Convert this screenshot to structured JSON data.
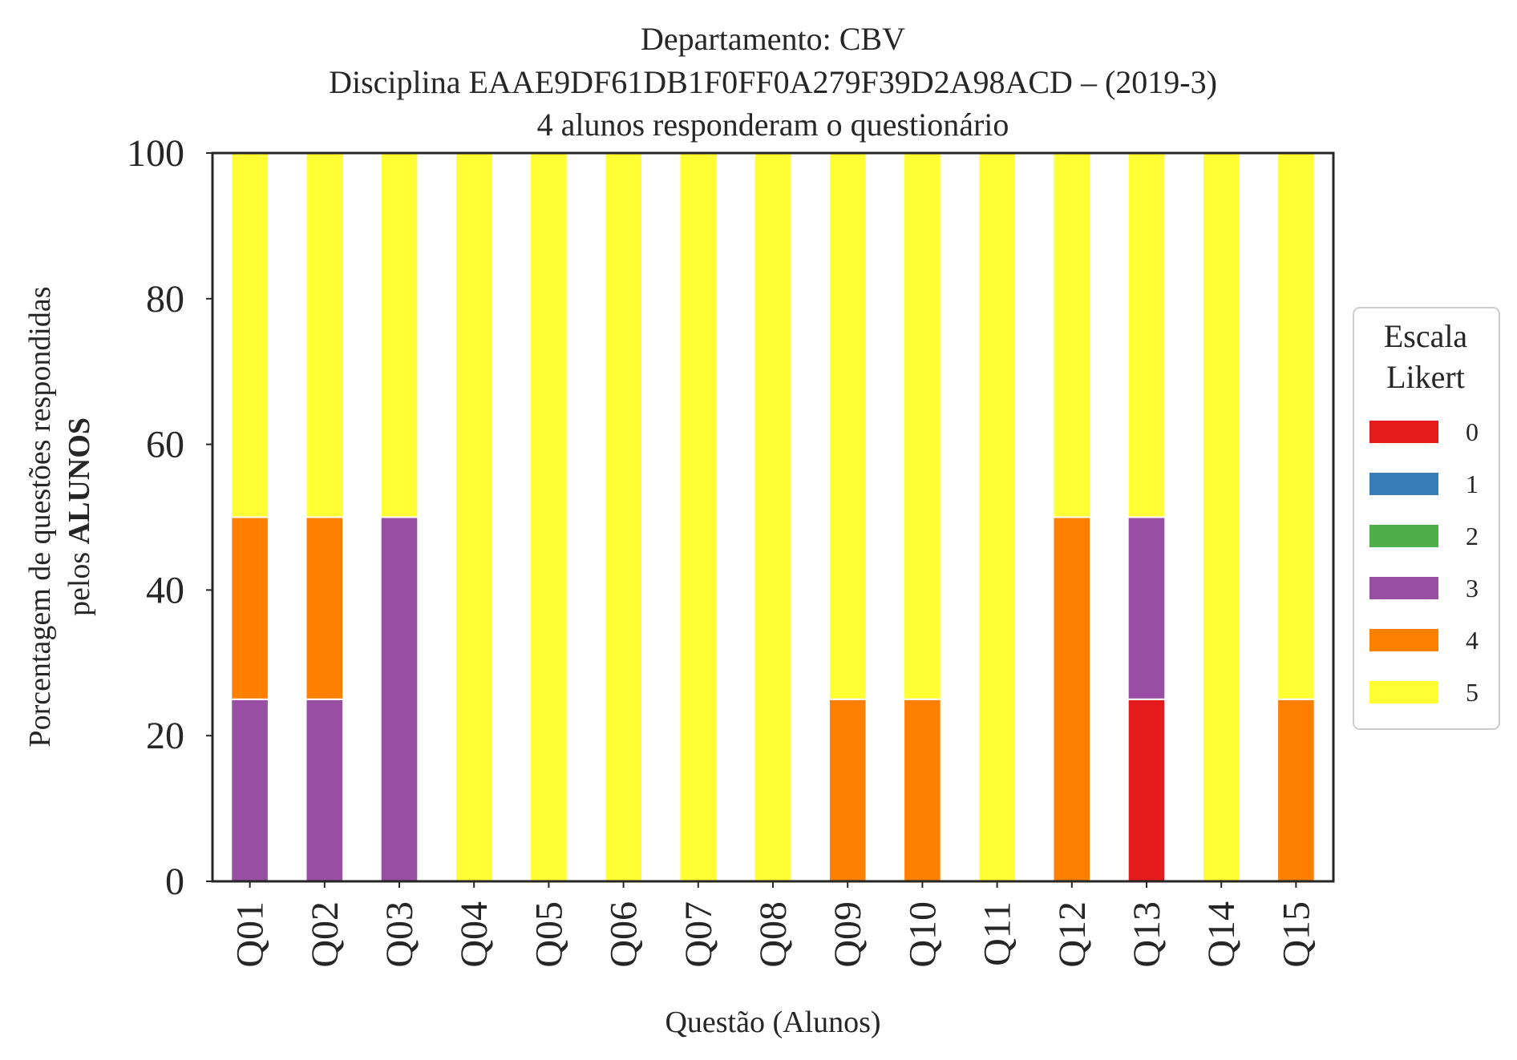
{
  "chart_data": {
    "type": "bar",
    "stacked": true,
    "title": [
      "Departamento: CBV",
      "Disciplina EAAE9DF61DB1F0FF0A279F39D2A98ACD – (2019-3)",
      "4 alunos responderam o questionário"
    ],
    "xlabel": "Questão (Alunos)",
    "ylabel_line1": "Porcentagem de questões respondidas",
    "ylabel_line2_prefix": "pelos ",
    "ylabel_line2_bold": "ALUNOS",
    "ylim": [
      0,
      100
    ],
    "yticks": [
      "0",
      "20",
      "40",
      "60",
      "80",
      "100"
    ],
    "categories": [
      "Q01",
      "Q02",
      "Q03",
      "Q04",
      "Q05",
      "Q06",
      "Q07",
      "Q08",
      "Q09",
      "Q10",
      "Q11",
      "Q12",
      "Q13",
      "Q14",
      "Q15"
    ],
    "series": [
      {
        "name": "0",
        "color": "#e41a1c",
        "values": [
          0,
          0,
          0,
          0,
          0,
          0,
          0,
          0,
          0,
          0,
          0,
          0,
          25,
          0,
          0
        ]
      },
      {
        "name": "1",
        "color": "#377eb8",
        "values": [
          0,
          0,
          0,
          0,
          0,
          0,
          0,
          0,
          0,
          0,
          0,
          0,
          0,
          0,
          0
        ]
      },
      {
        "name": "2",
        "color": "#4daf4a",
        "values": [
          0,
          0,
          0,
          0,
          0,
          0,
          0,
          0,
          0,
          0,
          0,
          0,
          0,
          0,
          0
        ]
      },
      {
        "name": "3",
        "color": "#984ea3",
        "values": [
          25,
          25,
          50,
          0,
          0,
          0,
          0,
          0,
          0,
          0,
          0,
          0,
          25,
          0,
          0
        ]
      },
      {
        "name": "4",
        "color": "#ff7f00",
        "values": [
          25,
          25,
          0,
          0,
          0,
          0,
          0,
          0,
          25,
          25,
          0,
          50,
          0,
          0,
          25
        ]
      },
      {
        "name": "5",
        "color": "#ffff33",
        "values": [
          50,
          50,
          50,
          100,
          100,
          100,
          100,
          100,
          75,
          75,
          100,
          50,
          50,
          100,
          75
        ]
      }
    ],
    "legend": {
      "title_line1": "Escala",
      "title_line2": "Likert",
      "placement": "right"
    },
    "grid": false
  }
}
